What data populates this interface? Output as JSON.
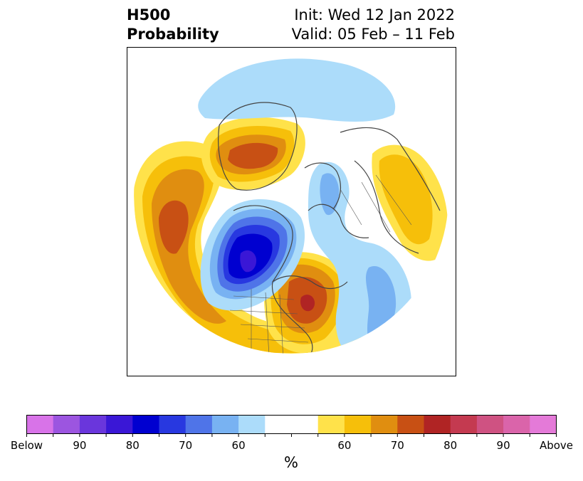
{
  "title": {
    "left_line1": "H500",
    "left_line2": "Probability",
    "right_line1": "Init: Wed 12 Jan 2022",
    "right_line2": "Valid: 05 Feb – 11 Feb"
  },
  "colorbar": {
    "unit": "%",
    "colors": [
      "#d873e8",
      "#9c55e0",
      "#6a36dc",
      "#3a17d6",
      "#0000d0",
      "#2838e0",
      "#4f74e8",
      "#78b2f2",
      "#acdcfa",
      "#ffffff",
      "#ffffff",
      "#ffe24a",
      "#f6bf0a",
      "#e08e10",
      "#c85014",
      "#b02424",
      "#c43a50",
      "#cf5282",
      "#da64aa",
      "#e47ad8"
    ],
    "labels": [
      {
        "text": "Below",
        "index": 0
      },
      {
        "text": "90",
        "index": 2
      },
      {
        "text": "80",
        "index": 4
      },
      {
        "text": "70",
        "index": 6
      },
      {
        "text": "60",
        "index": 8
      },
      {
        "text": "60",
        "index": 12
      },
      {
        "text": "70",
        "index": 14
      },
      {
        "text": "80",
        "index": 16
      },
      {
        "text": "90",
        "index": 18
      },
      {
        "text": "Above",
        "index": 20
      }
    ]
  },
  "map": {
    "projection": "north-polar-stereographic",
    "anomaly_colors": {
      "below_60": "#acdcfa",
      "below_70": "#78b2f2",
      "below_75": "#4f74e8",
      "below_80": "#2838e0",
      "below_85": "#0000d0",
      "below_90": "#3a17d6",
      "above_60": "#ffe24a",
      "above_65": "#f6bf0a",
      "above_70": "#e08e10",
      "above_75": "#c85014",
      "above_80": "#b02424"
    }
  }
}
